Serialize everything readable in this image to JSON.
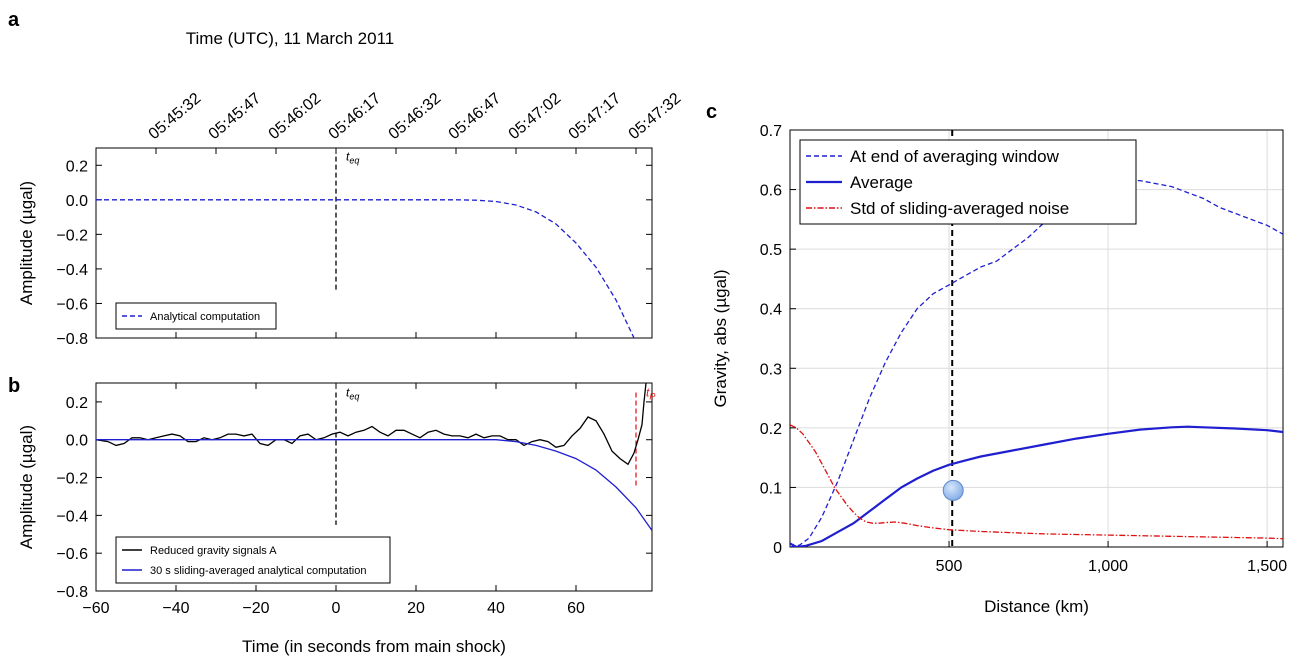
{
  "panels": {
    "a": "a",
    "b": "b",
    "c": "c"
  },
  "chart_data": [
    {
      "id": "a",
      "type": "line",
      "top_axis_title": "Time (UTC), 11 March 2011",
      "top_ticks": [
        "05:45:32",
        "05:45:47",
        "05:46:02",
        "05:46:17",
        "05:46:32",
        "05:46:47",
        "05:47:02",
        "05:47:17",
        "05:47:32"
      ],
      "top_tick_x": [
        -45,
        -30,
        -15,
        0,
        15,
        30,
        45,
        60,
        75
      ],
      "ylabel": "Amplitude (µgal)",
      "xlim": [
        -60,
        79
      ],
      "ylim": [
        -0.8,
        0.3
      ],
      "yticks": [
        0.2,
        0.0,
        -0.2,
        -0.4,
        -0.6,
        -0.8
      ],
      "ytick_labels": [
        "0.2",
        "0.0",
        "−0.2",
        "−0.4",
        "−0.6",
        "−0.8"
      ],
      "marker": {
        "label": "t",
        "sub": "eq",
        "x": 0,
        "y_range": [
          -0.53,
          0.25
        ],
        "color": "#000000"
      },
      "series": [
        {
          "name": "Analytical computation",
          "color": "#1f1fd0",
          "dash": "dashed",
          "x": [
            -60,
            30,
            35,
            40,
            45,
            50,
            55,
            60,
            65,
            70,
            74.5
          ],
          "y": [
            0,
            0,
            -0.002,
            -0.01,
            -0.03,
            -0.07,
            -0.14,
            -0.25,
            -0.39,
            -0.58,
            -0.8
          ]
        }
      ],
      "legend_position": "bottom-left"
    },
    {
      "id": "b",
      "type": "line",
      "xlabel": "Time (in seconds from main shock)",
      "ylabel": "Amplitude (µgal)",
      "xlim": [
        -60,
        79
      ],
      "ylim": [
        -0.8,
        0.3
      ],
      "xticks": [
        -60,
        -40,
        -20,
        0,
        20,
        40,
        60
      ],
      "xtick_labels": [
        "−60",
        "−40",
        "−20",
        "0",
        "20",
        "40",
        "60"
      ],
      "yticks": [
        0.2,
        0.0,
        -0.2,
        -0.4,
        -0.6,
        -0.8
      ],
      "ytick_labels": [
        "0.2",
        "0.0",
        "−0.2",
        "−0.4",
        "−0.6",
        "−0.8"
      ],
      "markers": [
        {
          "label": "t",
          "sub": "eq",
          "x": 0,
          "y_range": [
            -0.45,
            0.25
          ],
          "color": "#000000"
        },
        {
          "label": "t",
          "sub": "P",
          "x": 75,
          "y_range": [
            -0.25,
            0.25
          ],
          "color": "#e02020"
        }
      ],
      "series": [
        {
          "name": "Reduced gravity signals A",
          "color": "#000000",
          "dash": "solid",
          "x": [
            -60,
            -57,
            -55,
            -53,
            -51,
            -49,
            -47,
            -45,
            -43,
            -41,
            -39,
            -37,
            -35,
            -33,
            -31,
            -29,
            -27,
            -25,
            -23,
            -21,
            -19,
            -17,
            -15,
            -13,
            -11,
            -9,
            -7,
            -5,
            -3,
            -1,
            1,
            3,
            5,
            7,
            9,
            11,
            13,
            15,
            17,
            19,
            21,
            23,
            25,
            27,
            29,
            31,
            33,
            35,
            37,
            39,
            41,
            43,
            45,
            47,
            49,
            51,
            53,
            55,
            57,
            59,
            61,
            63,
            65,
            67,
            69,
            71,
            73,
            74.5,
            75.5,
            76.5,
            77,
            77.5
          ],
          "y": [
            0.0,
            -0.01,
            -0.03,
            -0.02,
            0.01,
            0.01,
            0.0,
            0.01,
            0.02,
            0.03,
            0.02,
            -0.01,
            -0.01,
            0.01,
            0.0,
            0.01,
            0.03,
            0.03,
            0.02,
            0.03,
            -0.02,
            -0.03,
            0.0,
            0.0,
            -0.02,
            0.02,
            0.03,
            0.0,
            0.01,
            0.03,
            0.04,
            0.02,
            0.04,
            0.05,
            0.07,
            0.04,
            0.02,
            0.05,
            0.05,
            0.03,
            0.01,
            0.04,
            0.05,
            0.03,
            0.02,
            0.02,
            0.01,
            0.03,
            0.01,
            0.02,
            0.02,
            0.0,
            0.0,
            -0.03,
            -0.01,
            0.0,
            -0.01,
            -0.04,
            -0.03,
            0.02,
            0.06,
            0.12,
            0.1,
            0.03,
            -0.06,
            -0.1,
            -0.13,
            -0.07,
            0.0,
            0.08,
            0.2,
            0.3
          ]
        },
        {
          "name": "30 s sliding-averaged analytical computation",
          "color": "#1f1fd0",
          "dash": "solid",
          "x": [
            -60,
            40,
            45,
            50,
            55,
            60,
            65,
            70,
            75,
            79
          ],
          "y": [
            0,
            0,
            -0.01,
            -0.03,
            -0.06,
            -0.1,
            -0.16,
            -0.25,
            -0.36,
            -0.48
          ]
        }
      ],
      "legend_position": "bottom-left"
    },
    {
      "id": "c",
      "type": "line",
      "xlabel": "Distance (km)",
      "ylabel": "Gravity, abs (µgal)",
      "xlim": [
        0,
        1550
      ],
      "ylim": [
        0,
        0.7
      ],
      "grid": true,
      "xticks": [
        500,
        1000,
        1500
      ],
      "xtick_labels": [
        "500",
        "1,000",
        "1,500"
      ],
      "yticks": [
        0,
        0.1,
        0.2,
        0.3,
        0.4,
        0.5,
        0.6,
        0.7
      ],
      "ytick_labels": [
        "0",
        "0.1",
        "0.2",
        "0.3",
        "0.4",
        "0.5",
        "0.6",
        "0.7"
      ],
      "vline": {
        "x": 510,
        "color": "#000000"
      },
      "point": {
        "x": 510,
        "y": 0.095,
        "color": "#7fa9e6"
      },
      "series": [
        {
          "name": "At end of averaging window",
          "color": "#1f1fd0",
          "dash": "dashed",
          "x": [
            0,
            30,
            60,
            100,
            150,
            200,
            250,
            300,
            350,
            400,
            450,
            500,
            550,
            600,
            650,
            700,
            750,
            800,
            850,
            900,
            950,
            1000,
            1050,
            1100,
            1150,
            1200,
            1250,
            1300,
            1350,
            1400,
            1450,
            1500,
            1550
          ],
          "y": [
            0,
            0.003,
            0.015,
            0.05,
            0.11,
            0.18,
            0.25,
            0.31,
            0.36,
            0.4,
            0.425,
            0.44,
            0.455,
            0.47,
            0.48,
            0.5,
            0.52,
            0.545,
            0.565,
            0.585,
            0.6,
            0.61,
            0.615,
            0.615,
            0.61,
            0.605,
            0.595,
            0.585,
            0.57,
            0.56,
            0.55,
            0.54,
            0.525
          ]
        },
        {
          "name": "Average",
          "color": "#1f1fd0",
          "dash": "solid",
          "x": [
            0,
            20,
            50,
            100,
            150,
            200,
            250,
            300,
            350,
            400,
            450,
            500,
            550,
            600,
            700,
            800,
            900,
            1000,
            1100,
            1200,
            1250,
            1300,
            1400,
            1500,
            1550
          ],
          "y": [
            0.006,
            0.0,
            0.002,
            0.01,
            0.025,
            0.04,
            0.06,
            0.08,
            0.1,
            0.115,
            0.128,
            0.138,
            0.145,
            0.152,
            0.162,
            0.172,
            0.182,
            0.19,
            0.197,
            0.201,
            0.202,
            0.201,
            0.199,
            0.196,
            0.193
          ],
          "linewidth": 2.2
        },
        {
          "name": "Std of sliding-averaged noise",
          "color": "#e01010",
          "dash": "dashdot",
          "x": [
            0,
            20,
            40,
            60,
            80,
            100,
            120,
            140,
            160,
            180,
            200,
            220,
            240,
            260,
            280,
            300,
            330,
            360,
            400,
            450,
            500,
            600,
            700,
            800,
            900,
            1000,
            1100,
            1200,
            1300,
            1400,
            1500,
            1550
          ],
          "y": [
            0.205,
            0.2,
            0.19,
            0.175,
            0.16,
            0.14,
            0.12,
            0.1,
            0.085,
            0.07,
            0.058,
            0.048,
            0.042,
            0.04,
            0.04,
            0.041,
            0.042,
            0.04,
            0.036,
            0.032,
            0.029,
            0.026,
            0.024,
            0.022,
            0.021,
            0.02,
            0.019,
            0.018,
            0.017,
            0.016,
            0.015,
            0.014
          ]
        }
      ],
      "legend_position": "top-left"
    }
  ]
}
